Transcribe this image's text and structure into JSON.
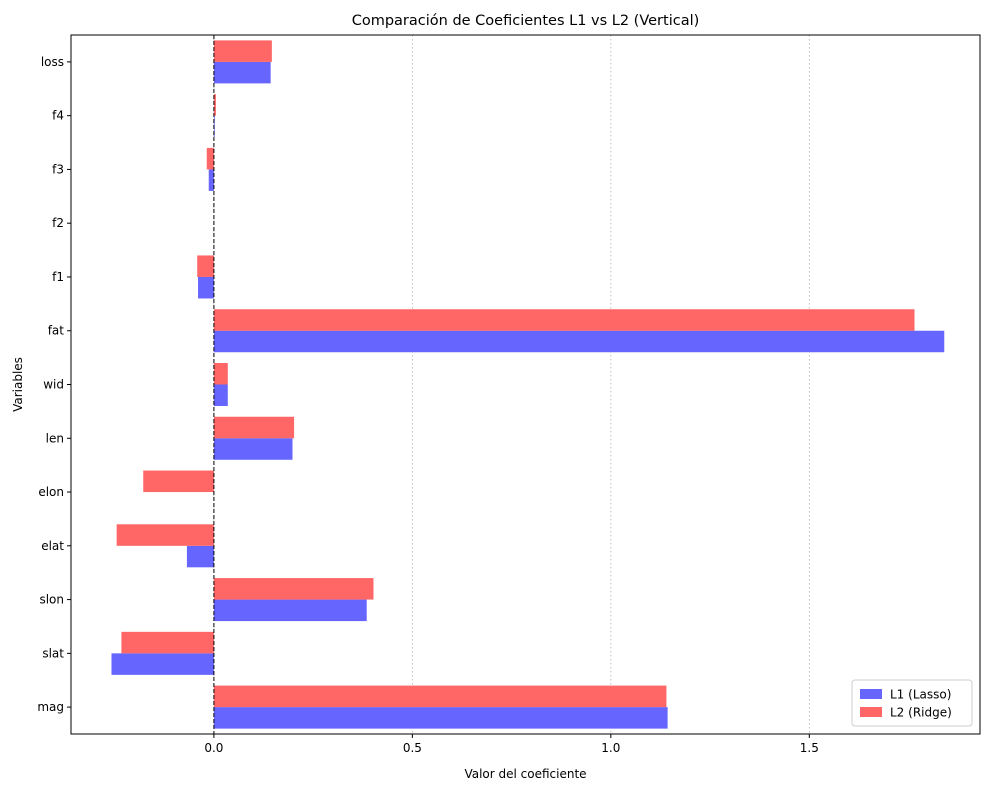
{
  "chart_data": {
    "type": "bar",
    "orientation": "horizontal",
    "title": "Comparación de Coeficientes L1 vs L2 (Vertical)",
    "xlabel": "Valor del coeficiente",
    "ylabel": "Variables",
    "categories": [
      "mag",
      "slat",
      "slon",
      "elat",
      "elon",
      "len",
      "wid",
      "fat",
      "f1",
      "f2",
      "f3",
      "f4",
      "loss"
    ],
    "series": [
      {
        "name": "L1 (Lasso)",
        "color": "#6666ff",
        "values": [
          1.143,
          -0.258,
          0.385,
          -0.068,
          0.0,
          0.198,
          0.035,
          1.84,
          -0.04,
          0.0,
          -0.013,
          0.002,
          0.143
        ]
      },
      {
        "name": "L2 (Ridge)",
        "color": "#ff6666",
        "values": [
          1.14,
          -0.233,
          0.402,
          -0.245,
          -0.178,
          0.202,
          0.035,
          1.765,
          -0.042,
          0.0,
          -0.018,
          0.005,
          0.146
        ]
      }
    ],
    "xlim": [
      -0.36,
      1.93
    ],
    "xticks": [
      0.0,
      0.5,
      1.0,
      1.5
    ],
    "xtick_labels": [
      "0.0",
      "0.5",
      "1.0",
      "1.5"
    ],
    "grid": "x-dotted",
    "zero_line": "dashed",
    "legend": "bottom-right"
  }
}
